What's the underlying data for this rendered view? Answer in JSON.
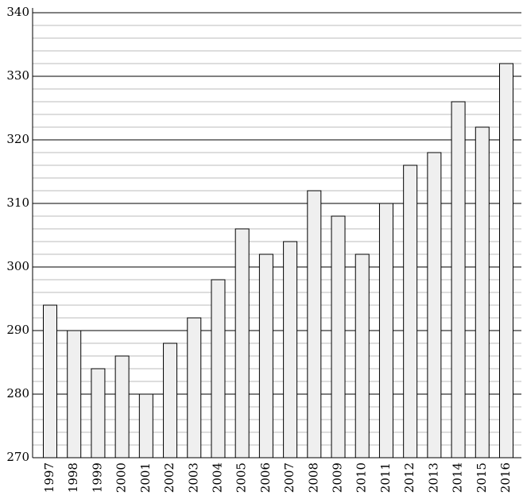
{
  "chart_data": {
    "type": "bar",
    "categories": [
      "1997",
      "1998",
      "1999",
      "2000",
      "2001",
      "2002",
      "2003",
      "2004",
      "2005",
      "2006",
      "2007",
      "2008",
      "2009",
      "2010",
      "2011",
      "2012",
      "2013",
      "2014",
      "2015",
      "2016"
    ],
    "values": [
      294,
      290,
      284,
      286,
      280,
      288,
      292,
      298,
      306,
      302,
      304,
      312,
      308,
      302,
      310,
      316,
      318,
      326,
      322,
      332
    ],
    "color": "#efefef",
    "ylim": [
      270,
      340
    ],
    "yticks": [
      270,
      280,
      290,
      300,
      310,
      320,
      330,
      340
    ],
    "grid": true,
    "minor_grid_step": 2
  }
}
